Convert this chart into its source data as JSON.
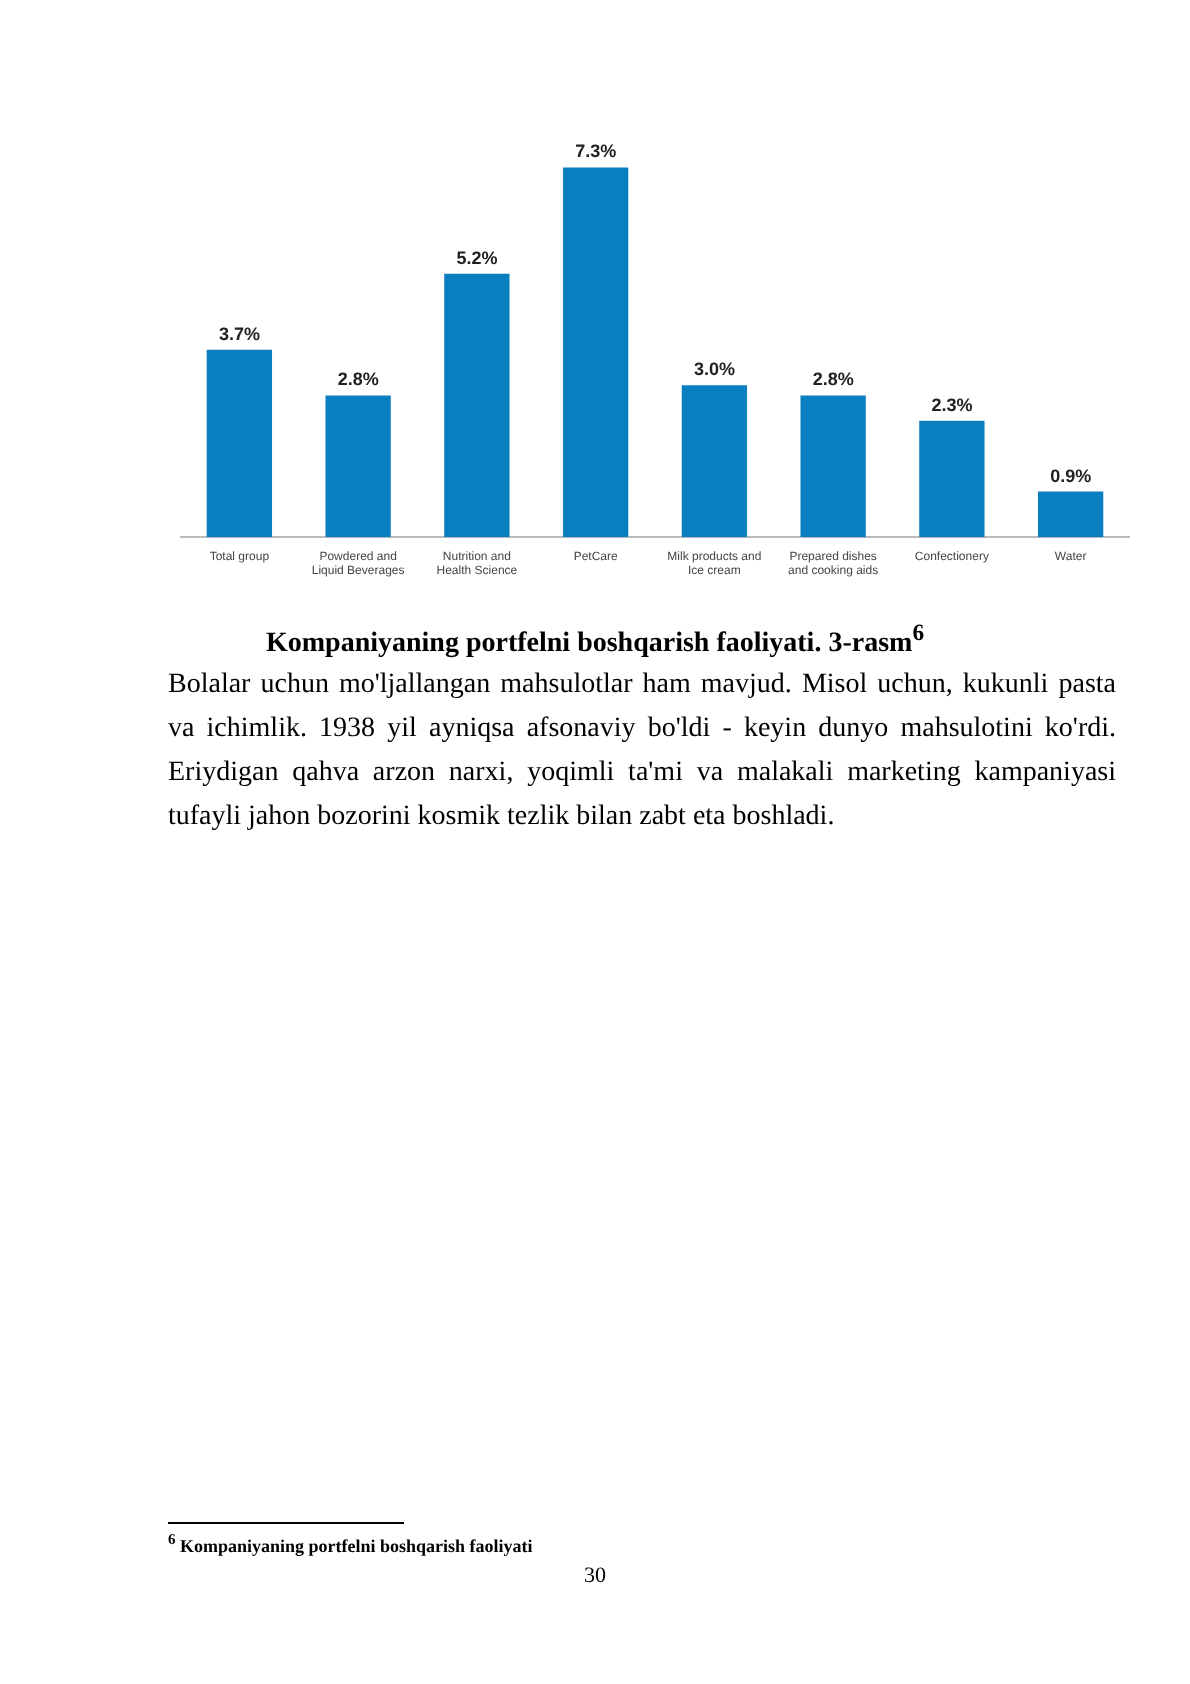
{
  "chart_data": {
    "type": "bar",
    "title": "Kompaniyaning portfelni boshqarish faoliyati. 3-rasm$^{6}$",
    "categories": [
      "Total group",
      "Powdered and Liquid Beverages",
      "Nutrition and Health Science",
      "PetCare",
      "Milk products and Ice cream",
      "Prepared dishes and cooking aids",
      "Confectionery",
      "Water"
    ],
    "values": [
      3.7,
      2.8,
      5.2,
      7.3,
      3.0,
      2.8,
      2.3,
      0.9
    ],
    "value_labels": [
      "3.7%",
      "2.8%",
      "5.2%",
      "7.3%",
      "3.0%",
      "2.8%",
      "2.3%",
      "0.9%"
    ],
    "color": "#0a7fbf",
    "grid": false,
    "legend": false,
    "tick_labels": "x",
    "annotations": [
      "Bolalar uchun mo'ljallangan mahsulotlar ham mavjud. Misol uchun, kukunli pasta va ichimlik. 1938 yil ayniqsa afsonaviy bo'ldi - keyin dunyo mahsulotini ko'rdi. Eriydigan qahva arzon narxi, yoqimli ta'mi va malakali marketing kampaniyasi tufayli jahon bozorini kosmik tezlik bilan zabt eta boshladi.",
      "$^{6}$ Kompaniyaning portfelni boshqarish faoliyati",
      "30"
    ]
  }
}
